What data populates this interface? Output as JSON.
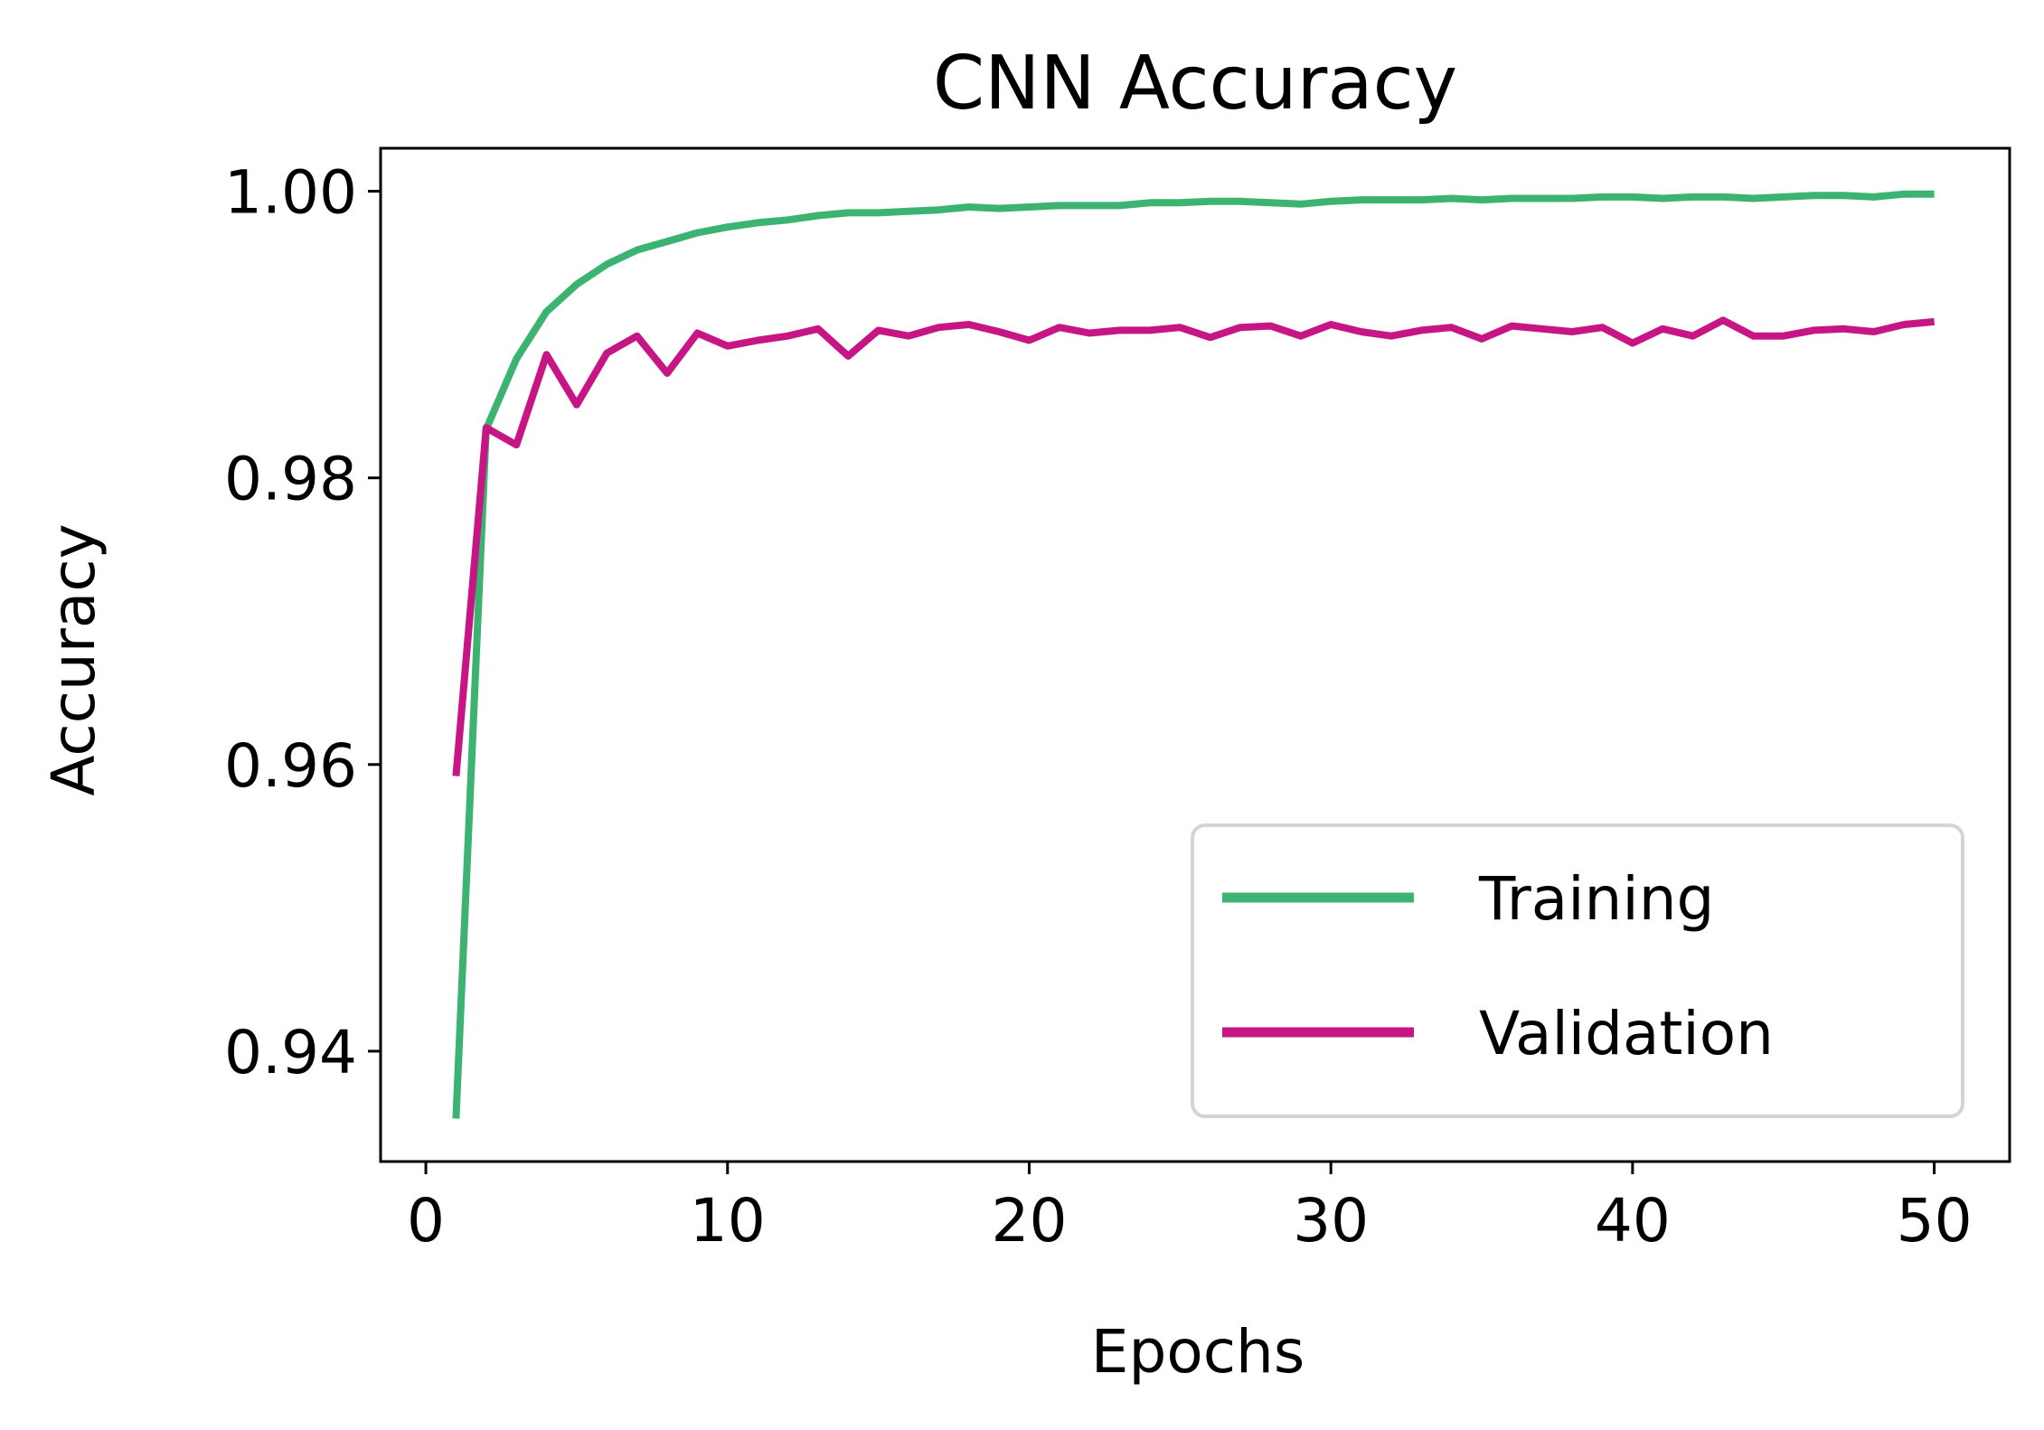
{
  "chart_data": {
    "type": "line",
    "title": "CNN Accuracy",
    "xlabel": "Epochs",
    "ylabel": "Accuracy",
    "xlim": [
      -1.5,
      52.5
    ],
    "ylim": [
      0.9323,
      1.003
    ],
    "xticks": [
      0,
      10,
      20,
      30,
      40,
      50
    ],
    "xtick_labels": [
      "0",
      "10",
      "20",
      "30",
      "40",
      "50"
    ],
    "yticks": [
      0.94,
      0.96,
      0.98,
      1.0
    ],
    "ytick_labels": [
      "0.94",
      "0.96",
      "0.98",
      "1.00"
    ],
    "grid": false,
    "legend_position": "lower-right",
    "x": [
      1,
      2,
      3,
      4,
      5,
      6,
      7,
      8,
      9,
      10,
      11,
      12,
      13,
      14,
      15,
      16,
      17,
      18,
      19,
      20,
      21,
      22,
      23,
      24,
      25,
      26,
      27,
      28,
      29,
      30,
      31,
      32,
      33,
      34,
      35,
      36,
      37,
      38,
      39,
      40,
      41,
      42,
      43,
      44,
      45,
      46,
      47,
      48,
      49,
      50
    ],
    "series": [
      {
        "name": "Training",
        "color": "#3cb371",
        "values": [
          0.9353,
          0.9834,
          0.9883,
          0.9916,
          0.9935,
          0.9949,
          0.9959,
          0.9965,
          0.9971,
          0.9975,
          0.9978,
          0.998,
          0.9983,
          0.9985,
          0.9985,
          0.9986,
          0.9987,
          0.9989,
          0.9988,
          0.9989,
          0.999,
          0.999,
          0.999,
          0.9992,
          0.9992,
          0.9993,
          0.9993,
          0.9992,
          0.9991,
          0.9993,
          0.9994,
          0.9994,
          0.9994,
          0.9995,
          0.9994,
          0.9995,
          0.9995,
          0.9995,
          0.9996,
          0.9996,
          0.9995,
          0.9996,
          0.9996,
          0.9995,
          0.9996,
          0.9997,
          0.9997,
          0.9996,
          0.9998,
          0.9998
        ]
      },
      {
        "name": "Validation",
        "color": "#c71585",
        "values": [
          0.9592,
          0.9835,
          0.9823,
          0.9886,
          0.9851,
          0.9887,
          0.9899,
          0.9873,
          0.9901,
          0.9892,
          0.9896,
          0.9899,
          0.9904,
          0.9885,
          0.9903,
          0.9899,
          0.9905,
          0.9907,
          0.9902,
          0.9896,
          0.9905,
          0.9901,
          0.9903,
          0.9903,
          0.9905,
          0.9898,
          0.9905,
          0.9906,
          0.9899,
          0.9907,
          0.9902,
          0.9899,
          0.9903,
          0.9905,
          0.9897,
          0.9906,
          0.9904,
          0.9902,
          0.9905,
          0.9894,
          0.9904,
          0.9899,
          0.991,
          0.9899,
          0.9899,
          0.9903,
          0.9904,
          0.9902,
          0.9907,
          0.9909
        ]
      }
    ]
  }
}
